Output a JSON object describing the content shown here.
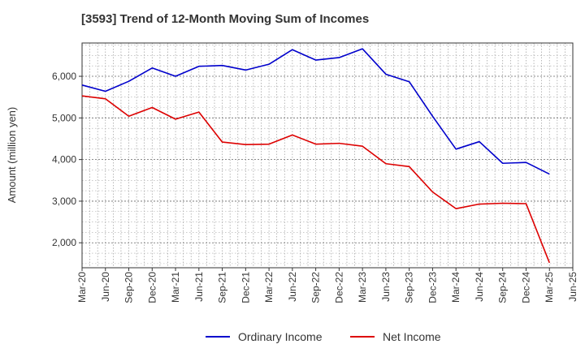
{
  "chart_data": {
    "type": "line",
    "title": "[3593]  Trend of 12-Month Moving Sum of Incomes",
    "xlabel": "",
    "ylabel": "Amount (million yen)",
    "ylim": [
      1400,
      6800
    ],
    "yticks": [
      2000,
      3000,
      4000,
      5000,
      6000
    ],
    "ytick_labels": [
      "2,000",
      "3,000",
      "4,000",
      "5,000",
      "6,000"
    ],
    "categories": [
      "Mar-20",
      "Jun-20",
      "Sep-20",
      "Dec-20",
      "Mar-21",
      "Jun-21",
      "Sep-21",
      "Dec-21",
      "Mar-22",
      "Jun-22",
      "Sep-22",
      "Dec-22",
      "Mar-23",
      "Jun-23",
      "Sep-23",
      "Dec-23",
      "Mar-24",
      "Jun-24",
      "Sep-24",
      "Dec-24",
      "Mar-25",
      "Jun-25"
    ],
    "grid": true,
    "legend_position": "bottom-center",
    "series": [
      {
        "name": "Ordinary Income",
        "color": "#0000cc",
        "values": [
          5790,
          5640,
          5880,
          6200,
          6000,
          6240,
          6260,
          6150,
          6290,
          6640,
          6390,
          6450,
          6660,
          6050,
          5870,
          5040,
          4250,
          4430,
          3910,
          3930,
          3650,
          null
        ]
      },
      {
        "name": "Net Income",
        "color": "#dd0000",
        "values": [
          5530,
          5460,
          5040,
          5250,
          4970,
          5140,
          4420,
          4360,
          4370,
          4590,
          4370,
          4390,
          4320,
          3900,
          3830,
          3220,
          2820,
          2930,
          2950,
          2940,
          1520,
          null
        ]
      }
    ]
  }
}
